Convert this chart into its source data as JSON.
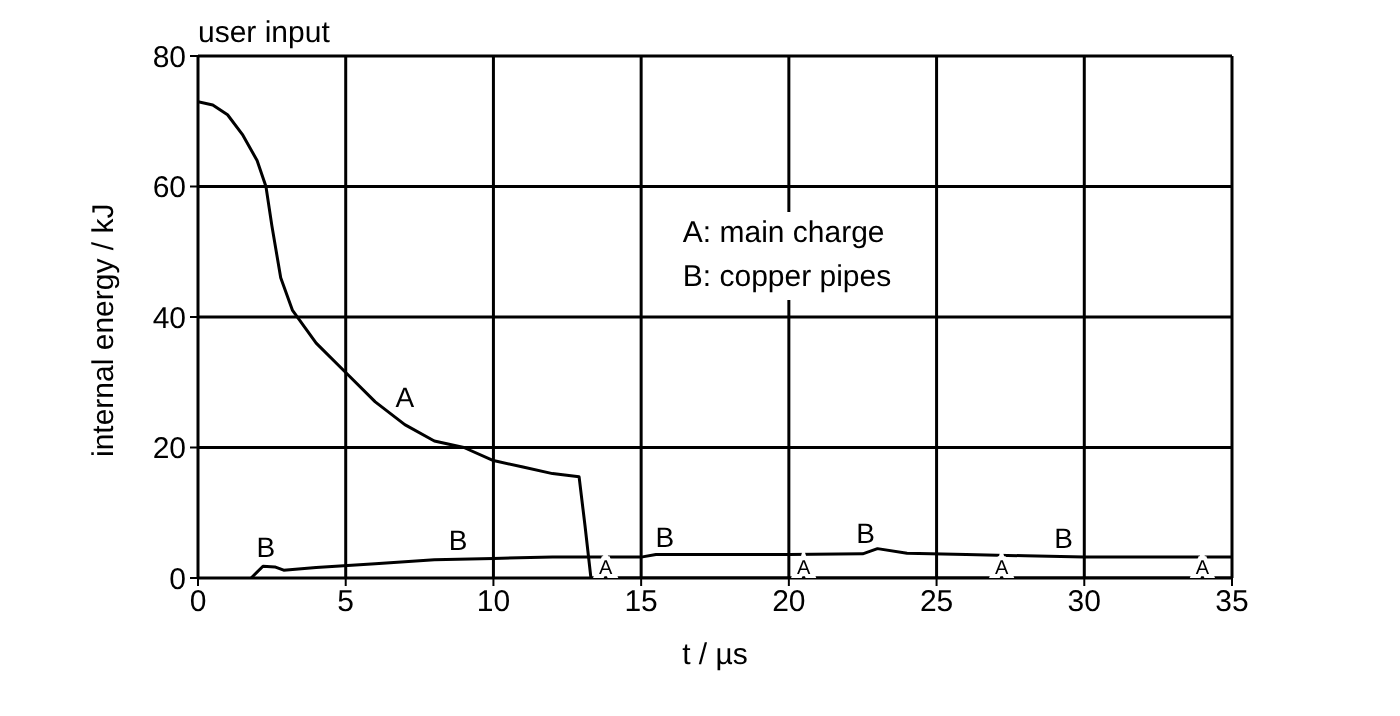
{
  "chart_data": {
    "type": "line",
    "title": "user input",
    "xlabel": "t / µs",
    "ylabel": "internal energy / kJ",
    "xlim": [
      0,
      35
    ],
    "xticks": [
      0,
      5,
      10,
      15,
      20,
      25,
      30,
      35
    ],
    "ylim": [
      0,
      80
    ],
    "yticks": [
      0,
      20,
      40,
      60,
      80
    ],
    "grid": true,
    "legend": false,
    "marker": "none",
    "line_style": "solid",
    "series": [
      {
        "color": "#000000",
        "x": [
          0,
          0.5,
          1,
          1.5,
          2,
          2.3,
          2.5,
          2.8,
          3.2,
          4,
          5,
          6,
          7,
          8,
          9,
          10,
          11,
          12,
          12.9,
          13.1,
          13.3,
          14,
          20,
          25,
          30,
          35
        ],
        "values": [
          73,
          72.5,
          71,
          68,
          64,
          60,
          54,
          46,
          41,
          36,
          31.5,
          27,
          23.5,
          21,
          20,
          18,
          17,
          16,
          15.5,
          8,
          0,
          0,
          0,
          0,
          0,
          0
        ]
      },
      {
        "color": "#000000",
        "x": [
          1.8,
          2.2,
          2.6,
          2.9,
          4,
          6,
          8,
          10,
          12,
          15,
          15.5,
          20,
          22.5,
          23,
          24,
          26,
          28,
          30,
          35
        ],
        "values": [
          0,
          1.8,
          1.7,
          1.2,
          1.6,
          2.2,
          2.8,
          3,
          3.2,
          3.2,
          3.6,
          3.6,
          3.7,
          4.5,
          3.8,
          3.6,
          3.4,
          3.2,
          3.2
        ]
      }
    ],
    "annotations": [
      "A: main charge",
      "B: copper pipes",
      {
        "text": "A",
        "x": 7,
        "y": 25
      },
      {
        "text": "A",
        "x": 13.8,
        "y": 0
      },
      {
        "text": "A",
        "x": 20.5,
        "y": 0
      },
      {
        "text": "A",
        "x": 27.2,
        "y": 0
      },
      {
        "text": "A",
        "x": 34,
        "y": 0
      },
      {
        "text": "B",
        "x": 2.3,
        "y": 2
      },
      {
        "text": "B",
        "x": 8.8,
        "y": 3
      },
      {
        "text": "B",
        "x": 15.8,
        "y": 3.6
      },
      {
        "text": "B",
        "x": 22.6,
        "y": 4.2
      },
      {
        "text": "B",
        "x": 29.3,
        "y": 3.4
      }
    ]
  }
}
